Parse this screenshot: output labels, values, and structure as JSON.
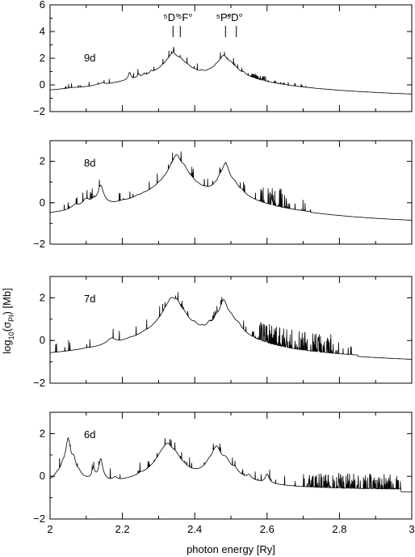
{
  "chart_data": {
    "type": "line",
    "xlabel": "photon energy [Ry]",
    "ylabel_main": "log",
    "ylabel_sub": "10",
    "ylabel_open": "(σ",
    "ylabel_sub2": "PI",
    "ylabel_close": ") [Mb]",
    "xlim": [
      2.0,
      3.0
    ],
    "x_ticks": [
      "2",
      "2.2",
      "2.4",
      "2.6",
      "2.8",
      "3"
    ],
    "x_tick_values": [
      2.0,
      2.2,
      2.4,
      2.6,
      2.8,
      3.0
    ],
    "grid": false,
    "panels": [
      {
        "label": "9d",
        "ylim": [
          -2,
          6
        ],
        "y_ticks": [
          "6",
          "4",
          "2",
          "0",
          "−2"
        ],
        "y_tick_values": [
          6,
          4,
          2,
          0,
          -2
        ],
        "baseline": -1.2,
        "tail": -1.2,
        "tail_start": 2.72,
        "peaks": [
          [
            2.06,
            -0.9,
            0.015
          ],
          [
            2.13,
            -0.7,
            0.008
          ],
          [
            2.145,
            -0.3,
            0.006
          ],
          [
            2.2,
            -0.9,
            0.01
          ],
          [
            2.22,
            0.8,
            0.003
          ],
          [
            2.245,
            0.5,
            0.003
          ],
          [
            2.26,
            0.3,
            0.003
          ],
          [
            2.28,
            0.6,
            0.003
          ],
          [
            2.29,
            0.0,
            0.004
          ],
          [
            2.31,
            0.6,
            0.004
          ],
          [
            2.325,
            1.0,
            0.006
          ],
          [
            2.34,
            2.4,
            0.01
          ],
          [
            2.36,
            1.8,
            0.01
          ],
          [
            2.38,
            1.0,
            0.008
          ],
          [
            2.4,
            0.4,
            0.005
          ],
          [
            2.42,
            0.5,
            0.004
          ],
          [
            2.44,
            0.4,
            0.004
          ],
          [
            2.46,
            0.9,
            0.006
          ],
          [
            2.48,
            2.2,
            0.01
          ],
          [
            2.5,
            1.4,
            0.008
          ],
          [
            2.515,
            0.6,
            0.006
          ],
          [
            2.535,
            0.4,
            0.004
          ]
        ],
        "dense": [
          2.55,
          2.6,
          0.35
        ],
        "markers": [
          {
            "label": "⁵D°",
            "x": 2.34
          },
          {
            "label": "⁵F°",
            "x": 2.36
          },
          {
            "label": "⁵P°",
            "x": 2.485
          },
          {
            "label": "⁵D°",
            "x": 2.515
          }
        ]
      },
      {
        "label": "8d",
        "ylim": [
          -2,
          3
        ],
        "y_ticks": [
          "2",
          "0",
          "−2"
        ],
        "y_tick_values": [
          2,
          0,
          -2
        ],
        "baseline": -1.05,
        "tail": -1.2,
        "tail_start": 2.72,
        "peaks": [
          [
            2.07,
            -0.4,
            0.01
          ],
          [
            2.1,
            0.0,
            0.01
          ],
          [
            2.12,
            -0.2,
            0.008
          ],
          [
            2.14,
            0.8,
            0.006
          ],
          [
            2.2,
            -0.7,
            0.008
          ],
          [
            2.24,
            -0.5,
            0.005
          ],
          [
            2.26,
            -0.5,
            0.005
          ],
          [
            2.28,
            -0.6,
            0.005
          ],
          [
            2.3,
            0.0,
            0.004
          ],
          [
            2.315,
            0.2,
            0.004
          ],
          [
            2.335,
            1.2,
            0.008
          ],
          [
            2.35,
            2.3,
            0.01
          ],
          [
            2.37,
            1.5,
            0.01
          ],
          [
            2.39,
            0.4,
            0.006
          ],
          [
            2.41,
            -0.1,
            0.005
          ],
          [
            2.43,
            -0.3,
            0.005
          ],
          [
            2.455,
            0.1,
            0.004
          ],
          [
            2.47,
            0.9,
            0.006
          ],
          [
            2.485,
            1.9,
            0.008
          ],
          [
            2.51,
            0.6,
            0.008
          ],
          [
            2.53,
            0.0,
            0.006
          ]
        ],
        "dense": [
          2.58,
          2.66,
          0.9
        ],
        "markers": []
      },
      {
        "label": "7d",
        "ylim": [
          -2,
          3
        ],
        "y_ticks": [
          "2",
          "0",
          "−2"
        ],
        "y_tick_values": [
          2,
          0,
          -2
        ],
        "baseline": -1.0,
        "tail": -1.15,
        "tail_start": 2.85,
        "peaks": [
          [
            2.1,
            -0.9,
            0.01
          ],
          [
            2.17,
            -0.15,
            0.012
          ],
          [
            2.22,
            -0.7,
            0.008
          ],
          [
            2.26,
            -0.5,
            0.006
          ],
          [
            2.3,
            -0.1,
            0.008
          ],
          [
            2.32,
            1.0,
            0.01
          ],
          [
            2.335,
            1.9,
            0.01
          ],
          [
            2.35,
            1.8,
            0.01
          ],
          [
            2.37,
            0.9,
            0.01
          ],
          [
            2.4,
            0.3,
            0.006
          ],
          [
            2.42,
            -0.1,
            0.005
          ],
          [
            2.44,
            0.5,
            0.005
          ],
          [
            2.46,
            0.8,
            0.006
          ],
          [
            2.48,
            1.9,
            0.008
          ],
          [
            2.5,
            0.9,
            0.01
          ],
          [
            2.52,
            0.4,
            0.008
          ]
        ],
        "dense": [
          2.56,
          2.78,
          0.9
        ],
        "markers": []
      },
      {
        "label": "6d",
        "ylim": [
          -2,
          3
        ],
        "y_ticks": [
          "2",
          "0",
          "−2"
        ],
        "y_tick_values": [
          2,
          0,
          -2
        ],
        "baseline": -0.65,
        "tail": -0.8,
        "tail_start": 2.97,
        "peaks": [
          [
            2.02,
            -0.3,
            0.006
          ],
          [
            2.035,
            0.2,
            0.004
          ],
          [
            2.05,
            1.8,
            0.004
          ],
          [
            2.065,
            0.8,
            0.004
          ],
          [
            2.08,
            -0.2,
            0.004
          ],
          [
            2.12,
            0.3,
            0.004
          ],
          [
            2.14,
            0.8,
            0.004
          ],
          [
            2.18,
            -0.3,
            0.006
          ],
          [
            2.25,
            -0.4,
            0.006
          ],
          [
            2.31,
            0.8,
            0.012
          ],
          [
            2.325,
            1.5,
            0.012
          ],
          [
            2.345,
            0.9,
            0.012
          ],
          [
            2.37,
            -0.2,
            0.008
          ],
          [
            2.44,
            0.3,
            0.008
          ],
          [
            2.46,
            1.4,
            0.01
          ],
          [
            2.485,
            0.7,
            0.01
          ],
          [
            2.51,
            0.1,
            0.008
          ],
          [
            2.55,
            -0.2,
            0.006
          ],
          [
            2.6,
            0.0,
            0.005
          ]
        ],
        "dense": [
          2.7,
          2.96,
          0.7
        ],
        "markers": []
      }
    ]
  }
}
